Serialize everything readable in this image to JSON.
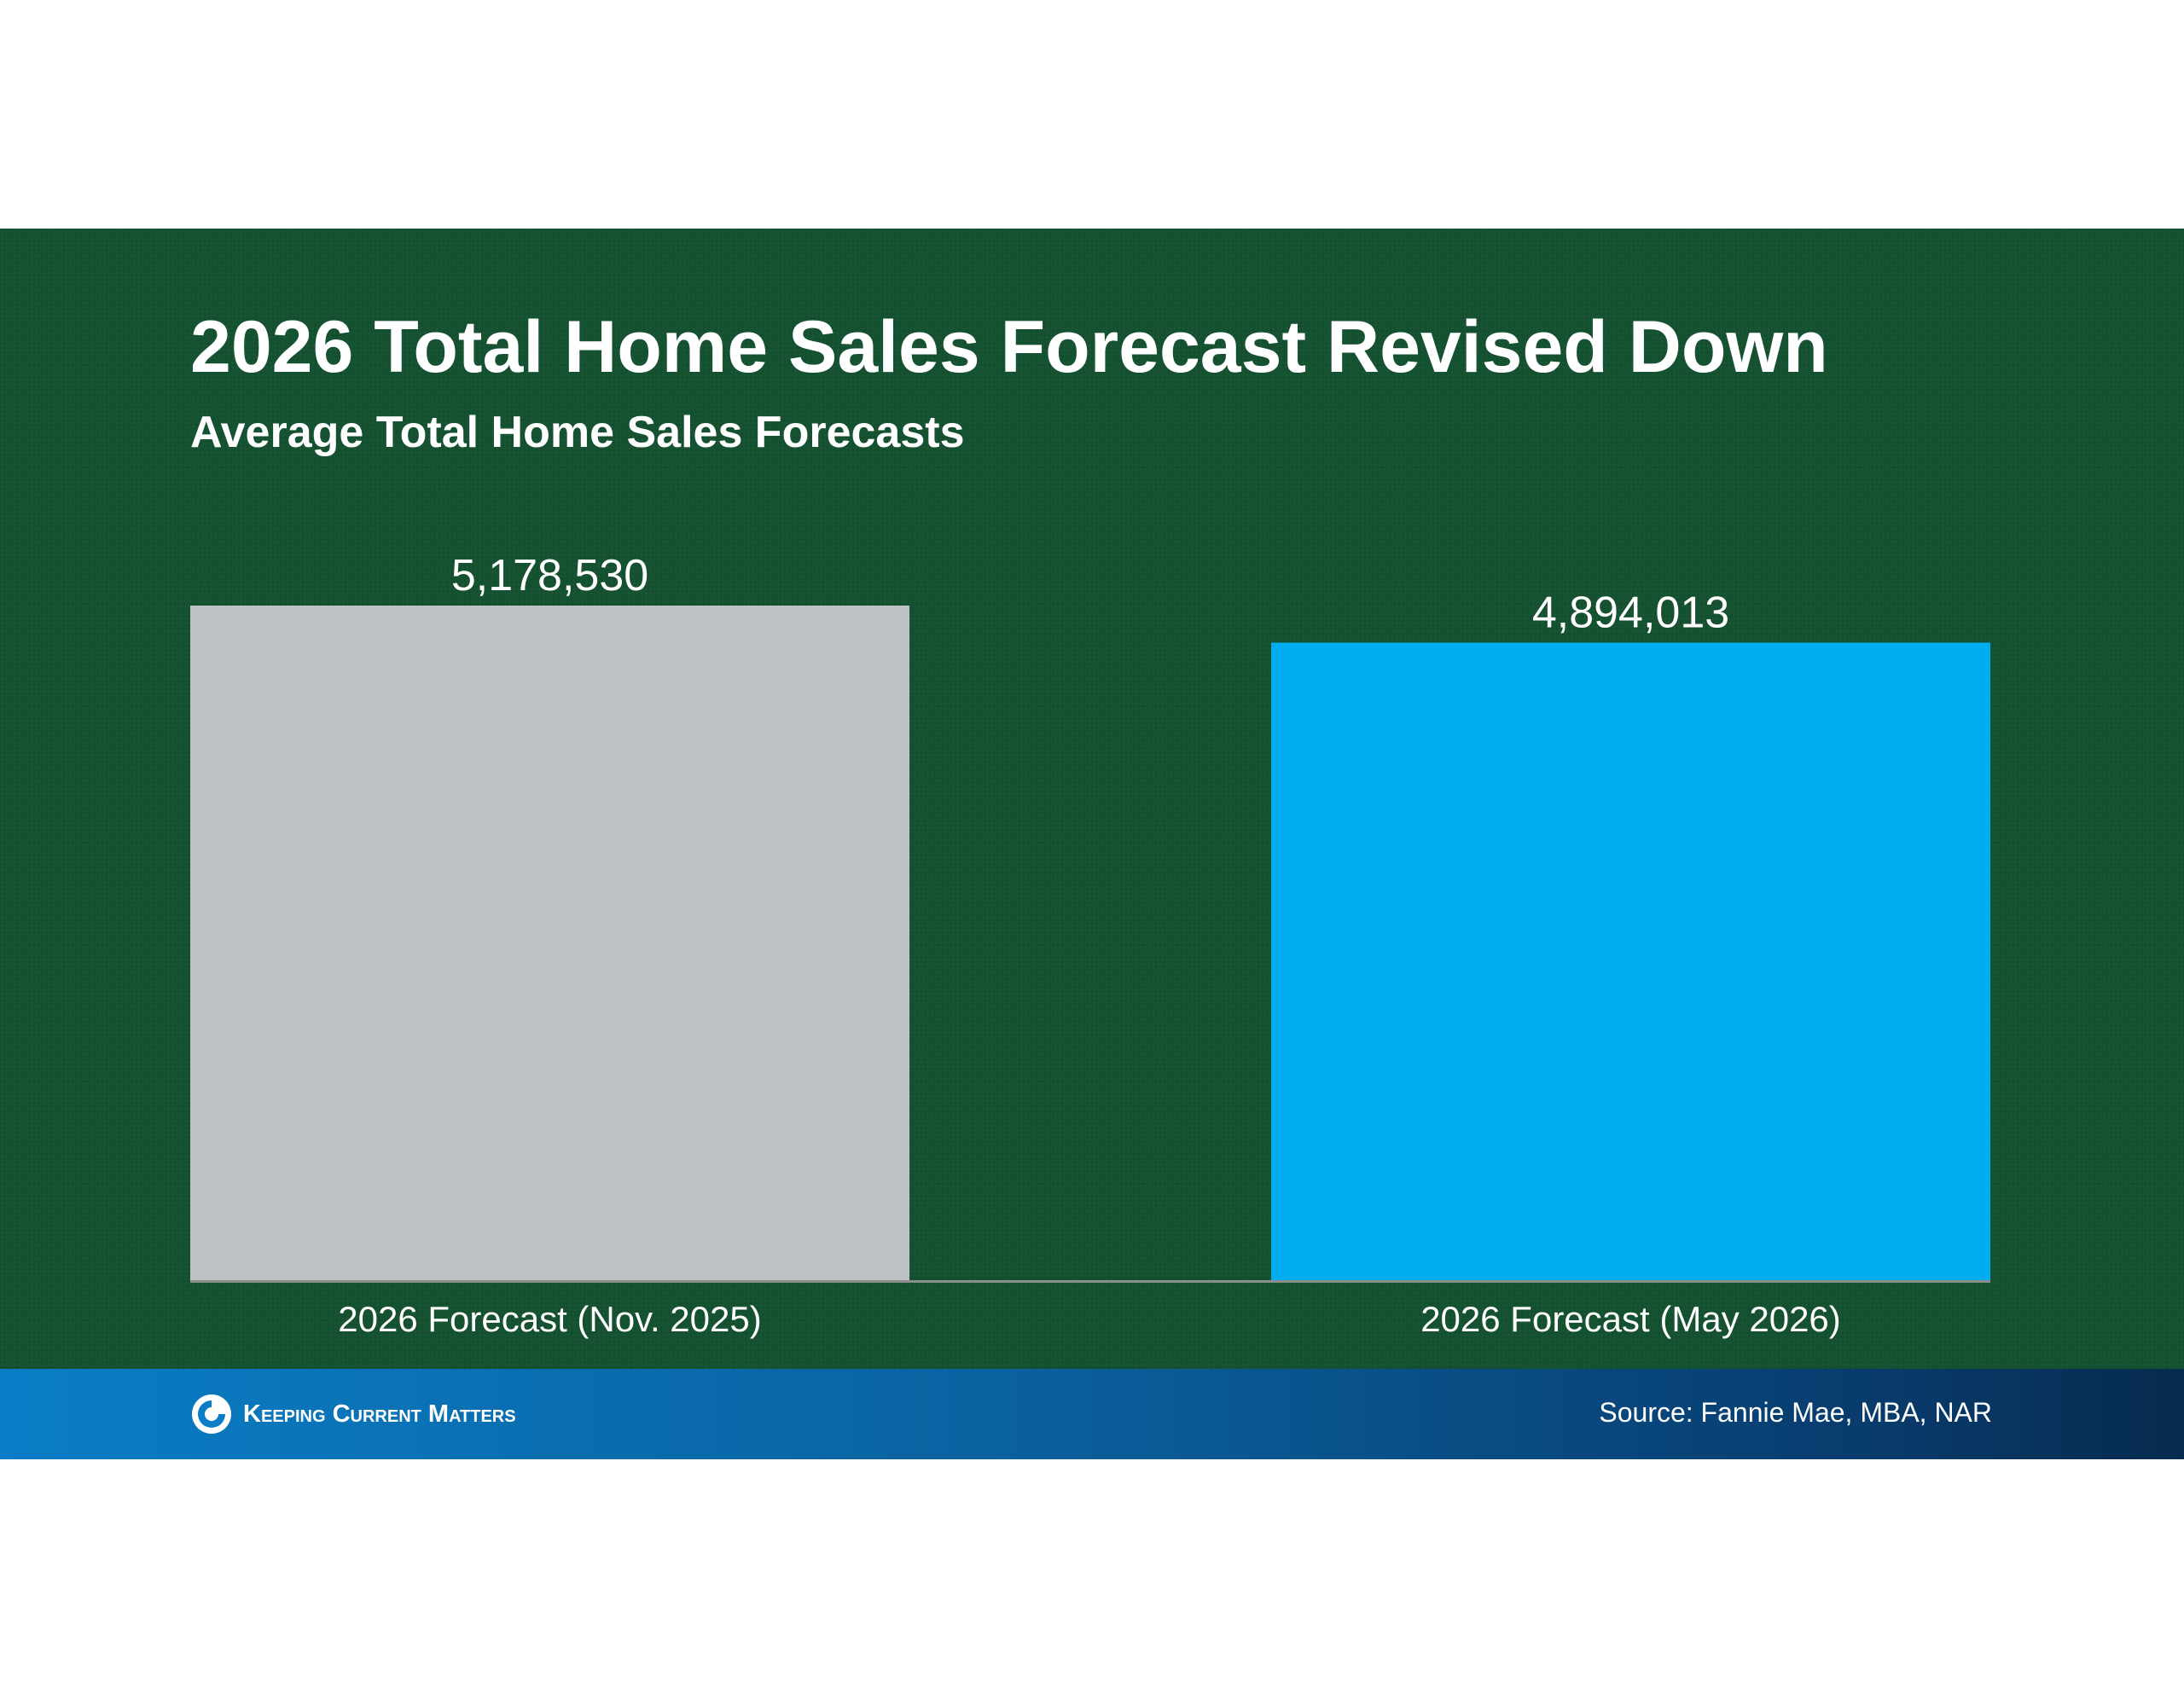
{
  "chart_data": {
    "type": "bar",
    "title": "2026 Total Home Sales Forecast Revised Down",
    "subtitle": "Average Total Home Sales Forecasts",
    "categories": [
      "2026 Forecast (Nov. 2025)",
      "2026 Forecast (May 2026)"
    ],
    "values": [
      5178530,
      4894013
    ],
    "value_labels": [
      "5,178,530",
      "4,894,013"
    ],
    "bar_colors": [
      "#bfc2c4",
      "#00aeef"
    ],
    "grid": false,
    "legend": "none"
  },
  "branding": {
    "logo_text": "Keeping Current Matters",
    "logo_icon": "kcm-swirl-icon"
  },
  "source": "Source: Fannie Mae, MBA, NAR",
  "colors": {
    "panel_green": "#145130",
    "footer_blue": "#0a7dc6",
    "footer_navy": "#072b4e"
  }
}
